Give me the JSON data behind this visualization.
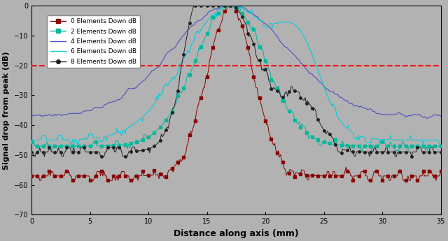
{
  "x_min": 0,
  "x_max": 35,
  "y_min": -70,
  "y_max": 0,
  "x_ticks": [
    0,
    5,
    10,
    15,
    20,
    25,
    30,
    35
  ],
  "y_ticks": [
    0,
    -10,
    -20,
    -30,
    -40,
    -50,
    -60,
    -70
  ],
  "xlabel": "Distance along axis (mm)",
  "ylabel": "Signal drop from peak (dB)",
  "background_color": "#b2b2b2",
  "dashed_line_y": -20,
  "dashed_line_color": "#ff0000",
  "legend_labels": [
    "0 Elements Down dB",
    "2 Elements Down dB",
    "4 Elements Down dB",
    "6 Elements Down dB",
    "8 Elements Down dB"
  ],
  "line_colors": [
    "#8b0000",
    "#00b89c",
    "#5050c0",
    "#00ccdd",
    "#202020"
  ],
  "peak_x": 17.0
}
